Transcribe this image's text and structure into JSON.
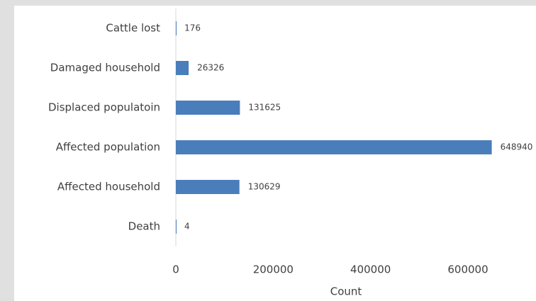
{
  "chart_data": {
    "type": "bar",
    "orientation": "horizontal",
    "categories": [
      "Cattle lost",
      "Damaged household",
      "Displaced populatoin",
      "Affected population",
      "Affected household",
      "Death"
    ],
    "values": [
      176,
      26326,
      131625,
      648940,
      130629,
      4
    ],
    "color": "#4a7ebb",
    "xlabel": "Count",
    "xlim": [
      0,
      800000
    ],
    "xticks": [
      0,
      200000,
      400000,
      600000
    ],
    "grid": false
  }
}
